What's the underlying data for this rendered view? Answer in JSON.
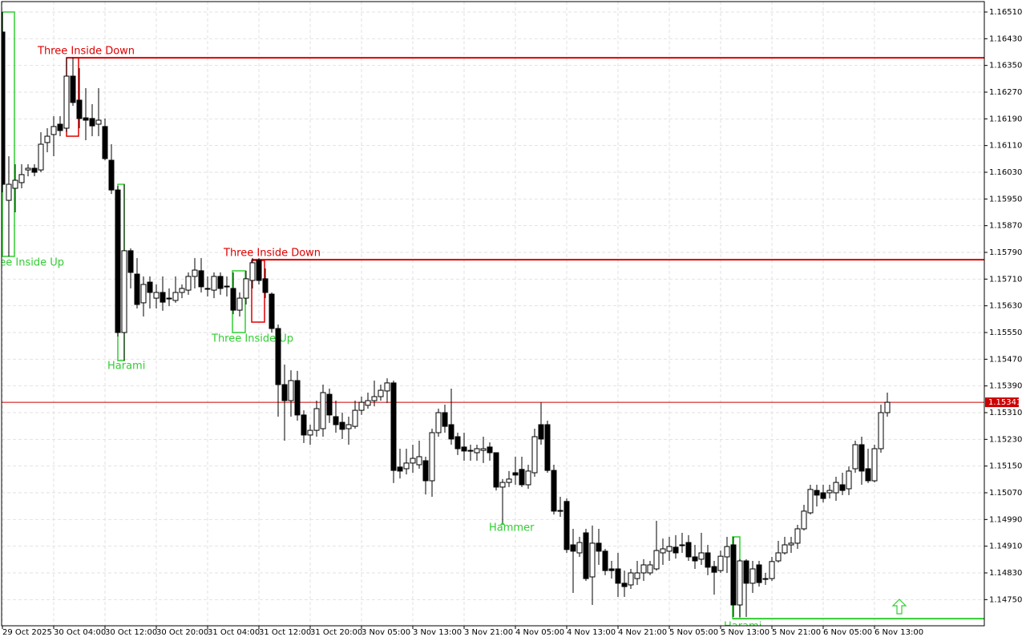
{
  "chart_data": {
    "type": "candlestick",
    "categories": [
      "29 Oct 2025",
      null,
      null,
      null,
      null,
      null,
      null,
      null,
      "30 Oct 04:00",
      null,
      null,
      null,
      null,
      null,
      null,
      null,
      "30 Oct 12:00",
      null,
      null,
      null,
      null,
      null,
      null,
      null,
      "30 Oct 20:00",
      null,
      null,
      null,
      null,
      null,
      null,
      null,
      "31 Oct 04:00",
      null,
      null,
      null,
      null,
      null,
      null,
      null,
      "31 Oct 12:00",
      null,
      null,
      null,
      null,
      null,
      null,
      null,
      "31 Oct 20:00",
      null,
      null,
      null,
      null,
      null,
      null,
      null,
      "3 Nov 05:00",
      null,
      null,
      null,
      null,
      null,
      null,
      null,
      "3 Nov 13:00",
      null,
      null,
      null,
      null,
      null,
      null,
      null,
      "3 Nov 21:00",
      null,
      null,
      null,
      null,
      null,
      null,
      null,
      "4 Nov 05:00",
      null,
      null,
      null,
      null,
      null,
      null,
      null,
      "4 Nov 13:00",
      null,
      null,
      null,
      null,
      null,
      null,
      null,
      "4 Nov 21:00",
      null,
      null,
      null,
      null,
      null,
      null,
      null,
      "5 Nov 05:00",
      null,
      null,
      null,
      null,
      null,
      null,
      null,
      "5 Nov 13:00",
      null,
      null,
      null,
      null,
      null,
      null,
      null,
      "5 Nov 21:00",
      null,
      null,
      null,
      null,
      null,
      null,
      null,
      "6 Nov 05:00",
      null,
      null,
      null,
      null,
      null,
      null,
      null,
      "6 Nov 13:00",
      null,
      null
    ],
    "open": [
      1.1645,
      1.15946,
      1.15982,
      1.15999,
      1.16037,
      1.16042,
      1.16037,
      1.16119,
      1.16143,
      1.16174,
      1.16162,
      1.16318,
      1.16246,
      1.16193,
      1.16191,
      1.16174,
      1.16167,
      1.16066,
      1.15977,
      1.1555,
      1.15795,
      1.15725,
      1.15639,
      1.15701,
      1.15653,
      1.1567,
      1.15653,
      1.15646,
      1.1567,
      1.15677,
      1.15718,
      1.15735,
      1.15682,
      1.15677,
      1.15718,
      1.15689,
      1.15682,
      1.15617,
      1.15653,
      1.15706,
      1.15766,
      1.15711,
      1.15665,
      1.15562,
      1.15394,
      1.15346,
      1.15406,
      1.15303,
      1.15243,
      1.15257,
      1.15262,
      1.15365,
      1.15298,
      1.15281,
      1.15262,
      1.15269,
      1.15317,
      1.15332,
      1.15346,
      1.15358,
      1.15375,
      1.15399,
      1.15147,
      1.15142,
      1.15159,
      1.15154,
      1.15166,
      1.15106,
      1.1525,
      1.1531,
      1.15274,
      1.15238,
      1.15207,
      1.15197,
      1.1519,
      1.15197,
      1.15207,
      1.1519,
      1.15087,
      1.15101,
      1.1513,
      1.1514,
      1.15094,
      1.1513,
      1.15274,
      1.15274,
      1.15137,
      1.15015,
      1.15044,
      1.14914,
      1.1489,
      1.1495,
      1.14818,
      1.14919,
      1.14895,
      1.14842,
      1.14842,
      1.14799,
      1.14794,
      1.14813,
      1.1483,
      1.1483,
      1.14842,
      1.1489,
      1.14895,
      1.14907,
      1.14912,
      1.14921,
      1.14878,
      1.14871,
      1.1489,
      1.14849,
      1.14837,
      1.14878,
      1.14914,
      1.14734,
      1.14866,
      1.14799,
      1.14854,
      1.14813,
      1.14813,
      1.14866,
      1.1489,
      1.14914,
      1.14919,
      1.14962,
      1.1501,
      1.15077,
      1.1507,
      1.1507,
      1.1507,
      1.15094,
      1.15082,
      1.15142,
      1.15214,
      1.15142,
      1.15106,
      1.15202,
      1.1531
    ],
    "high": [
      1.1651,
      1.16078,
      1.16054,
      1.16054,
      1.16054,
      1.16054,
      1.1615,
      1.16162,
      1.16198,
      1.16198,
      1.16373,
      1.16373,
      1.16342,
      1.16282,
      1.16234,
      1.16282,
      1.16191,
      1.16114,
      1.15989,
      1.15994,
      1.15802,
      1.15773,
      1.15718,
      1.15718,
      1.15694,
      1.15718,
      1.15682,
      1.15718,
      1.15694,
      1.1573,
      1.15773,
      1.15773,
      1.15718,
      1.1573,
      1.1573,
      1.15718,
      1.1573,
      1.1567,
      1.15735,
      1.15773,
      1.15773,
      1.15742,
      1.1567,
      1.15574,
      1.15454,
      1.15437,
      1.15435,
      1.15317,
      1.15274,
      1.15346,
      1.15394,
      1.15382,
      1.15346,
      1.1531,
      1.15298,
      1.15346,
      1.15358,
      1.1537,
      1.15406,
      1.15394,
      1.15413,
      1.15406,
      1.15202,
      1.15202,
      1.15214,
      1.15226,
      1.15178,
      1.15262,
      1.15322,
      1.15334,
      1.15382,
      1.1525,
      1.1525,
      1.15214,
      1.15214,
      1.15238,
      1.15221,
      1.1519,
      1.15111,
      1.15135,
      1.15178,
      1.15178,
      1.15154,
      1.15262,
      1.15341,
      1.15286,
      1.15154,
      1.15058,
      1.15053,
      1.14962,
      1.14938,
      1.14962,
      1.14972,
      1.14962,
      1.14902,
      1.14866,
      1.1489,
      1.14837,
      1.14842,
      1.14866,
      1.14871,
      1.14866,
      1.14986,
      1.14933,
      1.14938,
      1.14943,
      1.1495,
      1.14943,
      1.14914,
      1.1495,
      1.14914,
      1.14866,
      1.14897,
      1.14938,
      1.14938,
      1.14871,
      1.14871,
      1.14866,
      1.14866,
      1.1483,
      1.14878,
      1.14926,
      1.14938,
      1.14938,
      1.14974,
      1.15034,
      1.15094,
      1.15094,
      1.15094,
      1.15094,
      1.15118,
      1.1513,
      1.15149,
      1.15226,
      1.15238,
      1.15202,
      1.15214,
      1.15334,
      1.1537
    ],
    "low": [
      1.1597,
      1.15778,
      1.1591,
      1.15982,
      1.16018,
      1.16018,
      1.1603,
      1.1609,
      1.16078,
      1.16138,
      1.1615,
      1.16229,
      1.16162,
      1.16126,
      1.16138,
      1.16138,
      1.16066,
      1.15965,
      1.15538,
      1.15466,
      1.15682,
      1.15622,
      1.15598,
      1.15622,
      1.15622,
      1.15615,
      1.15629,
      1.15639,
      1.15653,
      1.15663,
      1.15682,
      1.1567,
      1.15658,
      1.15653,
      1.15663,
      1.15658,
      1.15605,
      1.15598,
      1.15634,
      1.15682,
      1.15694,
      1.15653,
      1.1555,
      1.15298,
      1.15226,
      1.15298,
      1.15286,
      1.15219,
      1.15214,
      1.15238,
      1.15238,
      1.15279,
      1.1525,
      1.15231,
      1.15214,
      1.15262,
      1.15303,
      1.15322,
      1.15329,
      1.15346,
      1.15339,
      1.15099,
      1.15113,
      1.15125,
      1.1513,
      1.15142,
      1.15065,
      1.15058,
      1.15238,
      1.1525,
      1.15214,
      1.15183,
      1.15166,
      1.15166,
      1.15166,
      1.15159,
      1.15166,
      1.15077,
      1.14981,
      1.15087,
      1.15094,
      1.15087,
      1.15082,
      1.15118,
      1.15214,
      1.1513,
      1.15005,
      1.14998,
      1.1489,
      1.1477,
      1.14878,
      1.14806,
      1.14734,
      1.14854,
      1.14823,
      1.14813,
      1.14758,
      1.14758,
      1.14782,
      1.14794,
      1.14806,
      1.14823,
      1.14837,
      1.14854,
      1.14866,
      1.14873,
      1.1489,
      1.14866,
      1.14842,
      1.14854,
      1.14823,
      1.14765,
      1.1483,
      1.1483,
      1.14698,
      1.14698,
      1.14698,
      1.1477,
      1.14789,
      1.14794,
      1.14806,
      1.14861,
      1.14885,
      1.1489,
      1.14902,
      1.14957,
      1.15005,
      1.15029,
      1.15041,
      1.15053,
      1.15046,
      1.15063,
      1.15063,
      1.1513,
      1.15094,
      1.15099,
      1.15101,
      1.1519,
      1.15298
    ],
    "close": [
      1.15994,
      1.15994,
      1.16006,
      1.16023,
      1.16042,
      1.1603,
      1.16114,
      1.16138,
      1.16167,
      1.16155,
      1.16318,
      1.16239,
      1.16191,
      1.16186,
      1.16169,
      1.16186,
      1.16071,
      1.15977,
      1.1555,
      1.15795,
      1.1573,
      1.15634,
      1.15694,
      1.1567,
      1.1567,
      1.15641,
      1.15651,
      1.1567,
      1.15682,
      1.15718,
      1.15737,
      1.15687,
      1.1568,
      1.15718,
      1.15682,
      1.15687,
      1.15617,
      1.15653,
      1.15711,
      1.15759,
      1.15706,
      1.1567,
      1.15562,
      1.15394,
      1.15346,
      1.15406,
      1.15303,
      1.15243,
      1.15257,
      1.15322,
      1.1537,
      1.15303,
      1.15274,
      1.1526,
      1.15274,
      1.15317,
      1.15341,
      1.15346,
      1.15358,
      1.15377,
      1.15399,
      1.15137,
      1.15135,
      1.15159,
      1.15173,
      1.15178,
      1.15106,
      1.1525,
      1.1531,
      1.15269,
      1.15231,
      1.15202,
      1.15195,
      1.15195,
      1.15202,
      1.15202,
      1.1519,
      1.15087,
      1.15101,
      1.15111,
      1.15123,
      1.15094,
      1.15135,
      1.15238,
      1.15231,
      1.15137,
      1.15015,
      1.15017,
      1.149,
      1.14895,
      1.14921,
      1.14813,
      1.14919,
      1.14895,
      1.14837,
      1.14837,
      1.14799,
      1.14789,
      1.1483,
      1.1483,
      1.14854,
      1.14854,
      1.14897,
      1.14902,
      1.14909,
      1.1489,
      1.14914,
      1.14878,
      1.14866,
      1.1489,
      1.14847,
      1.14832,
      1.1488,
      1.14909,
      1.14734,
      1.14866,
      1.14799,
      1.14842,
      1.14801,
      1.14811,
      1.14864,
      1.1489,
      1.14914,
      1.14919,
      1.14962,
      1.15015,
      1.1508,
      1.15063,
      1.15053,
      1.15077,
      1.15101,
      1.15077,
      1.15135,
      1.15214,
      1.15135,
      1.15106,
      1.15202,
      1.1531,
      1.15341
    ],
    "ylim": [
      1.14674,
      1.16546
    ],
    "yticks": [
      {
        "value": 1.1651,
        "label": "1.16510"
      },
      {
        "value": 1.1643,
        "label": "1.16430"
      },
      {
        "value": 1.1635,
        "label": "1.16350"
      },
      {
        "value": 1.1627,
        "label": "1.16270"
      },
      {
        "value": 1.1619,
        "label": "1.16190"
      },
      {
        "value": 1.1611,
        "label": "1.16110"
      },
      {
        "value": 1.1603,
        "label": "1.16030"
      },
      {
        "value": 1.1595,
        "label": "1.15950"
      },
      {
        "value": 1.1587,
        "label": "1.15870"
      },
      {
        "value": 1.1579,
        "label": "1.15790"
      },
      {
        "value": 1.1571,
        "label": "1.15710"
      },
      {
        "value": 1.1563,
        "label": "1.15630"
      },
      {
        "value": 1.1555,
        "label": "1.15550"
      },
      {
        "value": 1.1547,
        "label": "1.15470"
      },
      {
        "value": 1.1539,
        "label": "1.15390"
      },
      {
        "value": 1.1531,
        "label": "1.15310"
      },
      {
        "value": 1.1523,
        "label": "1.15230"
      },
      {
        "value": 1.1515,
        "label": "1.15150"
      },
      {
        "value": 1.1507,
        "label": "1.15070"
      },
      {
        "value": 1.1499,
        "label": "1.14990"
      },
      {
        "value": 1.1491,
        "label": "1.14910"
      },
      {
        "value": 1.1483,
        "label": "1.14830"
      },
      {
        "value": 1.1475,
        "label": "1.14750"
      }
    ],
    "grid": true,
    "current_price": {
      "value": 1.15341,
      "color": "#cc0000"
    },
    "levels": [
      {
        "value": 1.16373,
        "color": "#dd0000"
      },
      {
        "value": 1.15768,
        "color": "#dd0000"
      },
      {
        "value": 1.14693,
        "color": "#32cd32"
      }
    ],
    "patterns": [
      {
        "label": "Three Inside Up",
        "color": "#32cd32"
      },
      {
        "label": "Three Inside Down",
        "color": "#dd0000"
      },
      {
        "label": "Harami",
        "color": "#32cd32"
      },
      {
        "label": "Three Inside Down",
        "color": "#dd0000"
      },
      {
        "label": "Three Inside Up",
        "color": "#32cd32"
      },
      {
        "label": "Hammer",
        "color": "#32cd32"
      },
      {
        "label": "Harami",
        "color": "#32cd32"
      }
    ]
  }
}
